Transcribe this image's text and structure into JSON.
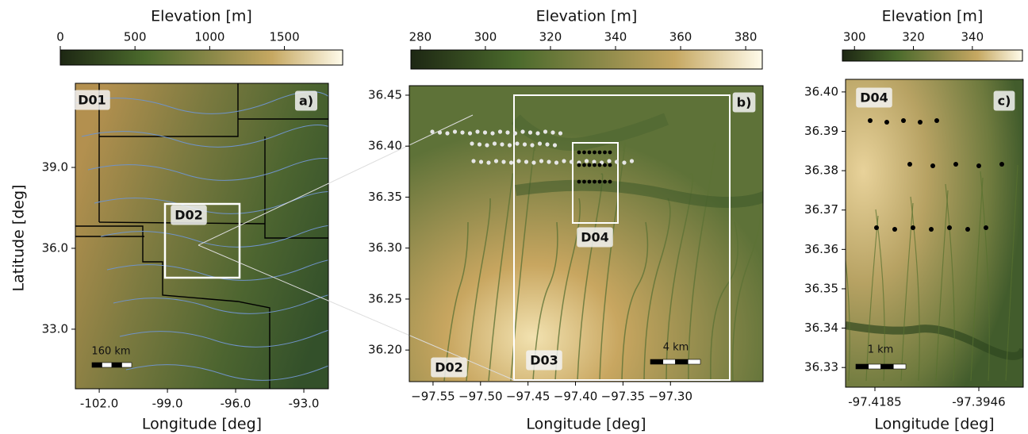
{
  "panels": [
    {
      "colorbar": {
        "label": "Elevation [m]",
        "range": [
          0,
          1890
        ],
        "ticks": [
          0,
          500,
          1000,
          1500
        ]
      },
      "map": {
        "xlim": [
          -103.05,
          -91.92
        ],
        "ylim": [
          30.79,
          42.12
        ],
        "xticks": [
          {
            "value": -102,
            "label": "-102.0"
          },
          {
            "value": -99,
            "label": "-99.0"
          },
          {
            "value": -96,
            "label": "-96.0"
          },
          {
            "value": -93,
            "label": "-93.0"
          }
        ],
        "yticks": [
          {
            "value": 39,
            "label": "39.0"
          },
          {
            "value": 36,
            "label": "36.0"
          },
          {
            "value": 33,
            "label": "33.0"
          }
        ],
        "xlabel": "Longitude [deg]",
        "ylabel": "Latitude [deg]",
        "annotations": [
          "D01",
          "a)",
          "D02",
          "160 km"
        ]
      }
    },
    {
      "colorbar": {
        "label": "Elevation [m]",
        "range": [
          277.1,
          385.1
        ],
        "ticks": [
          280,
          300,
          320,
          340,
          360,
          380
        ]
      },
      "map": {
        "xlim": [
          -97.575,
          -97.2025
        ],
        "ylim": [
          36.169,
          36.4593
        ],
        "xticks": [
          {
            "value": -97.55,
            "label": "−97.55"
          },
          {
            "value": -97.5,
            "label": "−97.50"
          },
          {
            "value": -97.45,
            "label": "−97.45"
          },
          {
            "value": -97.4,
            "label": "−97.40"
          },
          {
            "value": -97.35,
            "label": "−97.35"
          },
          {
            "value": -97.3,
            "label": "−97.30"
          }
        ],
        "yticks": [
          {
            "value": 36.45,
            "label": "36.45"
          },
          {
            "value": 36.4,
            "label": "36.40"
          },
          {
            "value": 36.35,
            "label": "36.35"
          },
          {
            "value": 36.3,
            "label": "36.30"
          },
          {
            "value": 36.25,
            "label": "36.25"
          },
          {
            "value": 36.2,
            "label": "36.20"
          }
        ],
        "xlabel": "Longitude [deg]",
        "annotations": [
          "D04",
          "b)",
          "D02",
          "D03",
          "4 km"
        ]
      }
    },
    {
      "colorbar": {
        "label": "Elevation [m]",
        "range": [
          295.9,
          357
        ],
        "ticks": [
          300,
          320,
          340
        ]
      },
      "map": {
        "xlim": [
          -97.42525,
          -97.38438
        ],
        "ylim": [
          36.325,
          36.4032
        ],
        "xticks": [
          {
            "value": -97.4185,
            "label": "-97.4185"
          },
          {
            "value": -97.3946,
            "label": "-97.3946"
          }
        ],
        "yticks": [
          {
            "value": 36.4,
            "label": "36.40"
          },
          {
            "value": 36.39,
            "label": "36.39"
          },
          {
            "value": 36.38,
            "label": "36.38"
          },
          {
            "value": 36.37,
            "label": "36.37"
          },
          {
            "value": 36.36,
            "label": "36.36"
          },
          {
            "value": 36.35,
            "label": "36.35"
          },
          {
            "value": 36.34,
            "label": "36.34"
          },
          {
            "value": 36.33,
            "label": "36.33"
          }
        ],
        "xlabel": "Longitude [deg]",
        "annotations": [
          "D04",
          "c)",
          "1 km"
        ]
      }
    }
  ]
}
